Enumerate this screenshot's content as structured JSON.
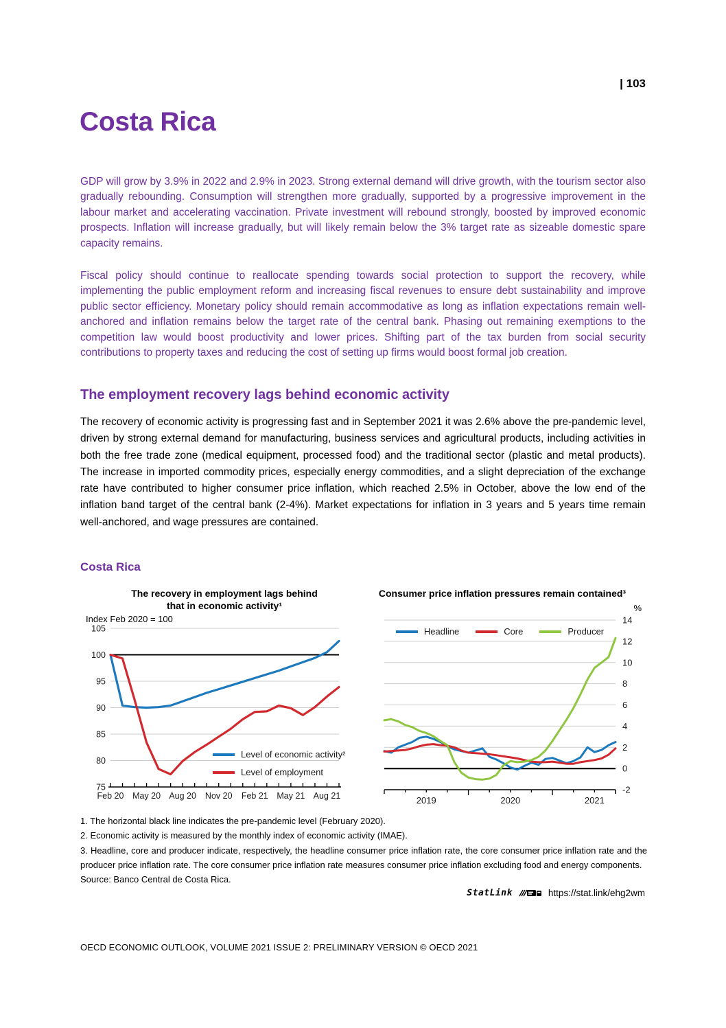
{
  "page": {
    "number": "| 103",
    "title": "Costa Rica",
    "footer": "OECD ECONOMIC OUTLOOK, VOLUME 2021 ISSUE 2: PRELIMINARY VERSION © OECD 2021"
  },
  "summary": {
    "para1": "GDP will grow by 3.9% in 2022 and 2.9% in 2023. Strong external demand will drive growth, with the tourism sector also gradually rebounding. Consumption will strengthen more gradually, supported by a progressive improvement in the labour market and accelerating vaccination. Private investment will rebound strongly, boosted by improved economic prospects. Inflation will increase gradually, but will likely remain below the 3% target rate as sizeable domestic spare capacity remains.",
    "para2": "Fiscal policy should continue to reallocate spending towards social protection to support the recovery, while implementing the public employment reform and increasing fiscal revenues to ensure debt sustainability and improve public sector efficiency. Monetary policy should remain accommodative as long as inflation expectations remain well-anchored and inflation remains below the target rate of the central bank. Phasing out remaining exemptions to the competition law would boost productivity and lower prices. Shifting part of the tax burden from social security contributions to property taxes and reducing the cost of setting up firms would boost formal job creation."
  },
  "section": {
    "heading": "The employment recovery lags behind economic activity",
    "body": "The recovery of economic activity is progressing fast and in September 2021 it was 2.6% above the pre-pandemic level, driven by strong external demand for manufacturing, business services and agricultural products, including activities in both the free trade zone (medical equipment, processed food) and the traditional sector (plastic and metal products). The increase in imported commodity prices, especially energy commodities, and a slight depreciation of the exchange rate have contributed to higher consumer price inflation, which reached 2.5% in October, above the low end of the inflation band target of the central bank (2-4%). Market expectations for inflation in 3 years and 5 years time remain well-anchored, and wage pressures are contained."
  },
  "figure": {
    "heading": "Costa Rica",
    "footnotes": [
      "1. The horizontal black line indicates the pre-pandemic level (February 2020).",
      "2. Economic activity is measured by the monthly index of economic activity (IMAE).",
      "3. Headline, core and producer indicate, respectively, the headline consumer price inflation rate, the core consumer price inflation rate and the producer price inflation rate. The core consumer price inflation rate measures consumer price inflation excluding food and energy components."
    ],
    "source": "Source: Banco Central de Costa Rica.",
    "statlink": {
      "label": "StatLink",
      "url": "https://stat.link/ehg2wm"
    }
  },
  "colors": {
    "purple": "#7030a0",
    "blue": "#1c79bd",
    "red": "#d2292f",
    "green": "#8ec63f",
    "grid": "#cccccc",
    "axis": "#000000"
  },
  "chart_data": [
    {
      "type": "line",
      "title": "The recovery in employment lags behind that in economic activity¹",
      "title_lines": [
        "The recovery in employment lags behind",
        "that in economic activity¹"
      ],
      "axis_note": "Index Feb 2020 = 100",
      "x": [
        "Feb 20",
        "Mar 20",
        "Apr 20",
        "May 20",
        "Jun 20",
        "Jul 20",
        "Aug 20",
        "Sep 20",
        "Oct 20",
        "Nov 20",
        "Dec 20",
        "Jan 21",
        "Feb 21",
        "Mar 21",
        "Apr 21",
        "May 21",
        "Jun 21",
        "Jul 21",
        "Aug 21",
        "Sep 21"
      ],
      "x_tick_labels": [
        "Feb 20",
        "May 20",
        "Aug 20",
        "Nov 20",
        "Feb 21",
        "May 21",
        "Aug 21"
      ],
      "ylim": [
        75,
        105
      ],
      "yticks": [
        75,
        80,
        85,
        90,
        95,
        100,
        105
      ],
      "baseline": 100,
      "grid": true,
      "legend_position": "inside-bottom-right",
      "series": [
        {
          "name": "Level of economic activity²",
          "color": "#1c79bd",
          "values": [
            100,
            90.4,
            90.1,
            90.0,
            90.1,
            90.4,
            91.2,
            92.0,
            92.8,
            93.5,
            94.2,
            94.9,
            95.6,
            96.3,
            97.0,
            97.8,
            98.6,
            99.4,
            100.5,
            102.6
          ]
        },
        {
          "name": "Level of employment",
          "color": "#d2292f",
          "values": [
            100,
            99.3,
            91.5,
            83.4,
            78.4,
            77.4,
            79.9,
            81.6,
            83.0,
            84.5,
            86.0,
            87.8,
            89.2,
            89.3,
            90.4,
            89.9,
            88.6,
            90.1,
            92.1,
            93.9
          ]
        }
      ]
    },
    {
      "type": "line",
      "title": "Consumer price inflation pressures remain contained³",
      "axis_note": "%",
      "x_start": "Jan 2019",
      "x_end": "Oct 2021",
      "frequency": "monthly",
      "x_year_labels": [
        "2019",
        "2020",
        "2021"
      ],
      "ylim": [
        -2,
        14
      ],
      "yticks": [
        -2,
        0,
        2,
        4,
        6,
        8,
        10,
        12,
        14
      ],
      "baseline": 0,
      "grid": true,
      "legend_position": "inside-top",
      "series": [
        {
          "name": "Headline",
          "color": "#1c79bd",
          "values": [
            1.65,
            1.5,
            2.0,
            2.25,
            2.5,
            2.9,
            3.0,
            2.8,
            2.5,
            2.1,
            1.8,
            1.65,
            1.5,
            1.7,
            1.9,
            1.1,
            0.85,
            0.5,
            0.1,
            -0.1,
            0.25,
            0.55,
            0.35,
            0.9,
            1.0,
            0.75,
            0.5,
            0.7,
            1.05,
            2.0,
            1.55,
            1.75,
            2.2,
            2.5
          ]
        },
        {
          "name": "Core",
          "color": "#d2292f",
          "values": [
            1.6,
            1.65,
            1.7,
            1.75,
            1.9,
            2.1,
            2.25,
            2.3,
            2.2,
            2.15,
            2.0,
            1.7,
            1.5,
            1.45,
            1.4,
            1.35,
            1.25,
            1.15,
            1.05,
            0.95,
            0.8,
            0.65,
            0.6,
            0.6,
            0.65,
            0.55,
            0.45,
            0.45,
            0.6,
            0.7,
            0.8,
            0.95,
            1.3,
            1.9
          ]
        },
        {
          "name": "Producer",
          "color": "#8ec63f",
          "values": [
            4.55,
            4.65,
            4.45,
            4.1,
            3.9,
            3.55,
            3.35,
            3.05,
            2.6,
            2.2,
            0.6,
            -0.4,
            -0.85,
            -1.0,
            -1.05,
            -0.95,
            -0.6,
            0.3,
            0.7,
            0.6,
            0.65,
            0.8,
            1.1,
            1.7,
            2.6,
            3.6,
            4.6,
            5.7,
            7.0,
            8.4,
            9.5,
            10.0,
            10.5,
            12.3
          ]
        }
      ]
    }
  ]
}
